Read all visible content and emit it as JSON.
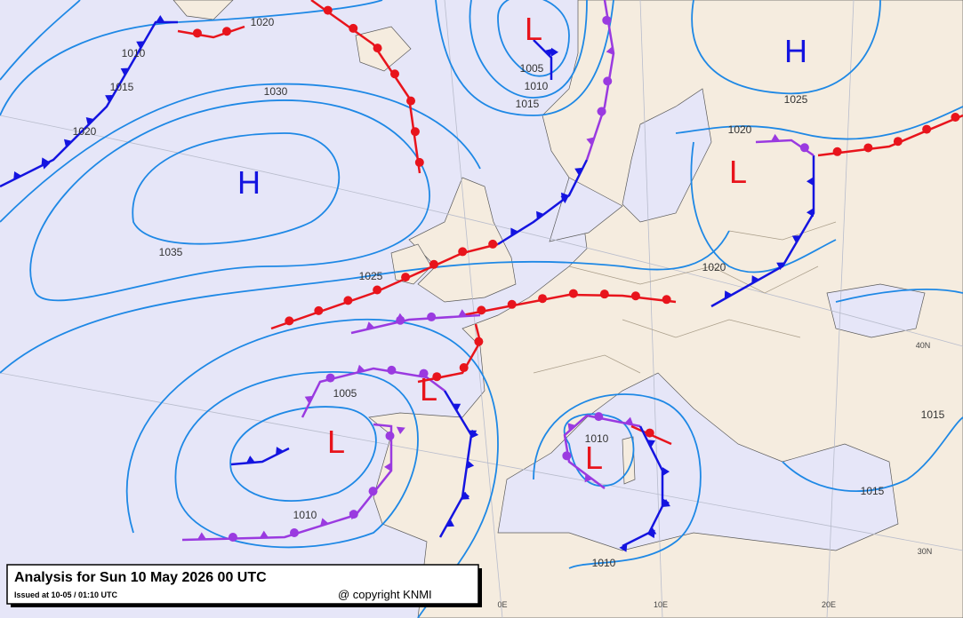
{
  "map": {
    "title": "Analysis for Sun 10 May 2026 00 UTC",
    "issued": "Issued at 10-05 / 01:10 UTC",
    "copyright": "@ copyright KNMI",
    "pressure_centers": [
      "H",
      "H",
      "L",
      "L",
      "L",
      "L",
      "L"
    ],
    "isobar_labels": [
      "1020",
      "1010",
      "1015",
      "1020",
      "1030",
      "1035",
      "1025",
      "1005",
      "1010",
      "1015",
      "1025",
      "1020",
      "1020",
      "1005",
      "1010",
      "1010",
      "1010",
      "1015",
      "1015"
    ],
    "grid_labels": [
      "0E",
      "10E",
      "20E",
      "30N",
      "40N"
    ]
  }
}
